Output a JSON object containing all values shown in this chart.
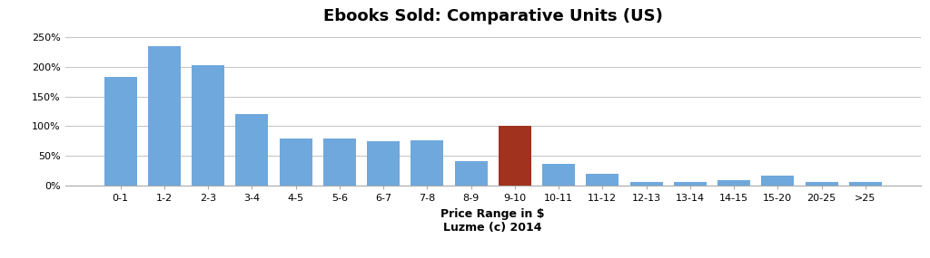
{
  "title": "Ebooks Sold: Comparative Units (US)",
  "xlabel": "Price Range in $\nLuzme (c) 2014",
  "categories": [
    "0-1",
    "1-2",
    "2-3",
    "3-4",
    "4-5",
    "5-6",
    "6-7",
    "7-8",
    "8-9",
    "9-10",
    "10-11",
    "11-12",
    "12-13",
    "13-14",
    "14-15",
    "15-20",
    "20-25",
    ">25"
  ],
  "values": [
    1.83,
    2.35,
    2.02,
    1.2,
    0.79,
    0.79,
    0.75,
    0.76,
    0.42,
    1.01,
    0.37,
    0.2,
    0.07,
    0.07,
    0.1,
    0.17,
    0.07,
    0.06
  ],
  "bar_colors": [
    "#6FA8DC",
    "#6FA8DC",
    "#6FA8DC",
    "#6FA8DC",
    "#6FA8DC",
    "#6FA8DC",
    "#6FA8DC",
    "#6FA8DC",
    "#6FA8DC",
    "#A0321E",
    "#6FA8DC",
    "#6FA8DC",
    "#6FA8DC",
    "#6FA8DC",
    "#6FA8DC",
    "#6FA8DC",
    "#6FA8DC",
    "#6FA8DC"
  ],
  "ylim": [
    0,
    2.6
  ],
  "yticks": [
    0,
    0.5,
    1.0,
    1.5,
    2.0,
    2.5
  ],
  "ytick_labels": [
    "0%",
    "50%",
    "100%",
    "150%",
    "200%",
    "250%"
  ],
  "background_color": "#FFFFFF",
  "plot_bg_color": "#FFFFFF",
  "grid_color": "#C8C8C8",
  "title_fontsize": 13,
  "xlabel_fontsize": 9,
  "tick_fontsize": 8
}
